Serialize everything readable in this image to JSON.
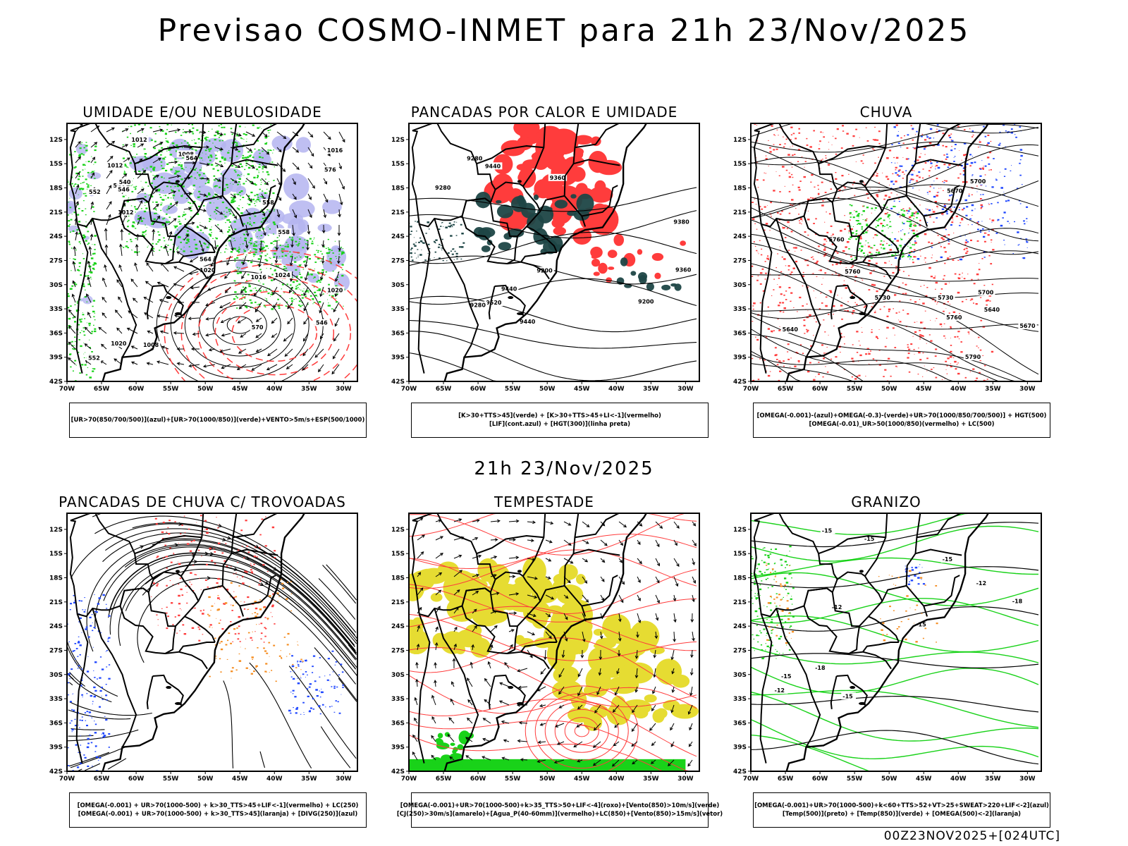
{
  "header": {
    "title": "Previsao COSMO-INMET  para 21h 23/Nov/2025"
  },
  "middle_title": "21h 23/Nov/2025",
  "footer_code": "00Z23NOV2025+[024UTC]",
  "axes": {
    "lat_labels": [
      "12S",
      "15S",
      "18S",
      "21S",
      "24S",
      "27S",
      "30S",
      "33S",
      "36S",
      "39S",
      "42S"
    ],
    "lon_labels": [
      "70W",
      "65W",
      "60W",
      "55W",
      "50W",
      "45W",
      "40W",
      "35W",
      "30W"
    ]
  },
  "colors": {
    "green": "#19d219",
    "red": "#ff3c3c",
    "blue": "#1e46ff",
    "lavender": "#b4b4f0",
    "darkteal": "#1e4646",
    "yellow": "#e6dc32",
    "orange": "#f58c1e",
    "black": "#000000"
  },
  "panels": [
    {
      "id": "umidade",
      "title": "UMIDADE E/OU NEBULOSIDADE",
      "legend": [
        "[UR>70(850/700/500)](azul)+[UR>70(1000/850)](verde)+VENTO>5m/s+ESP(500/1000)"
      ],
      "contour_labels": [
        "1008",
        "1012",
        "1008",
        "1012",
        "1016",
        "1016",
        "1012",
        "1020",
        "1020",
        "1024",
        "1020",
        "564",
        "552",
        "558",
        "552",
        "546",
        "558",
        "546",
        "552",
        "540",
        "564",
        "570",
        "576"
      ]
    },
    {
      "id": "pancadas_calor",
      "title": "PANCADAS POR CALOR E UMIDADE",
      "legend": [
        "[K>30+TTS>45](verde) + [K>30+TTS>45+LI<-1](vermelho)",
        "[LIF](cont.azul) + [HGT(300)](linha preta)"
      ],
      "contour_labels": [
        "9520",
        "9440",
        "9440",
        "9380",
        "9440",
        "9280",
        "9360",
        "9280",
        "9200",
        "9200",
        "9280",
        "9360"
      ]
    },
    {
      "id": "chuva",
      "title": "CHUVA",
      "legend": [
        "[OMEGA(-0.001)-(azul)+OMEGA(-0.3)-(verde)+UR>70(1000/850/700/500)] + HGT(500)",
        "[OMEGA(-0.01)_UR>50(1000/850)(vermelho) + LC(500)"
      ],
      "contour_labels": [
        "5760",
        "5790",
        "5760",
        "5730",
        "5760",
        "5730",
        "5700",
        "5670",
        "5640",
        "5700",
        "5670",
        "5640"
      ]
    },
    {
      "id": "trovoadas",
      "title": "PANCADAS DE CHUVA C/ TROVOADAS",
      "legend": [
        "[OMEGA(-0.001) + UR>70(1000-500) + k>30_TTS>45+LIF<-1](vermelho) + LC(250)",
        "[OMEGA(-0.001) + UR>70(1000-500) + k>30_TTS>45](laranja) + [DIVG(250)](azul)"
      ],
      "contour_labels": []
    },
    {
      "id": "tempestade",
      "title": "TEMPESTADE",
      "legend": [
        "[OMEGA(-0.001)+UR>70(1000-500)+k>35_TTS>50+LIF<-4](roxo)+[Vento(850)>10m/s](verde)",
        "[CJ(250)>30m/s](amarelo)+[Agua_P(40-60mm)](vermelho)+LC(850)+[Vento(850)>15m/s](vetor)"
      ],
      "contour_labels": []
    },
    {
      "id": "granizo",
      "title": "GRANIZO",
      "legend": [
        "[OMEGA(-0.001)+UR>70(1000-500)+k<60+TTS>52+VT>25+SWEAT>220+LIF<-2](azul)",
        "[Temp(500)](preto) + [Temp(850)](verde) + [OMEGA(500)<-2](laranja)"
      ],
      "contour_labels": [
        "-12",
        "-15",
        "-12",
        "-15",
        "-15",
        "-18",
        "-15",
        "-15",
        "-18",
        "-15",
        "-12"
      ]
    }
  ]
}
